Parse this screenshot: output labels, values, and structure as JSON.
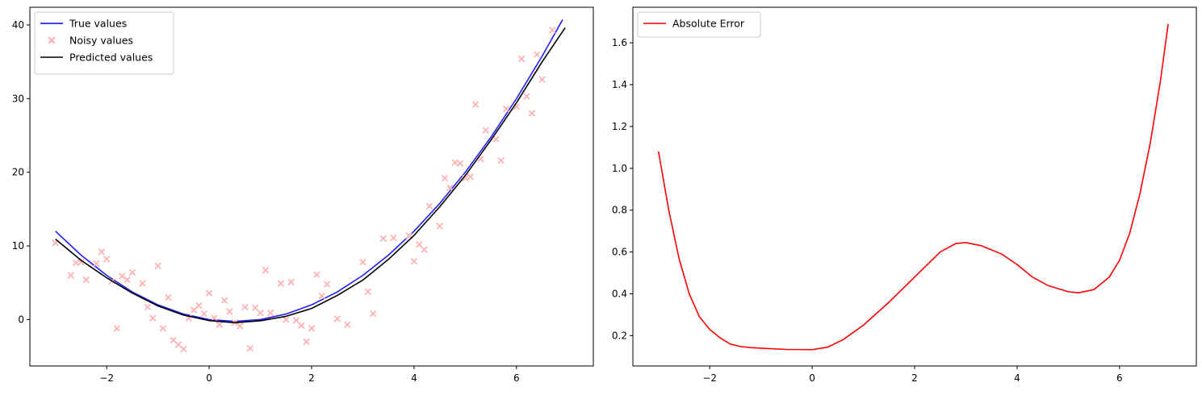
{
  "chart_data": [
    {
      "type": "line",
      "xlim": [
        -3.5,
        7.5
      ],
      "ylim": [
        -6.3,
        42.4
      ],
      "xticks": [
        -2,
        0,
        2,
        4,
        6
      ],
      "yticks": [
        0,
        10,
        20,
        30,
        40
      ],
      "grid": false,
      "legend": {
        "placement": "top-left",
        "entries": [
          {
            "label": "True values",
            "color": "#0000ff",
            "marker": "line"
          },
          {
            "label": "Noisy values",
            "color": "#ff9f9f",
            "marker": "x"
          },
          {
            "label": "Predicted values",
            "color": "#000000",
            "marker": "line"
          }
        ]
      },
      "series": [
        {
          "name": "True values",
          "kind": "line",
          "color": "#1f1fff",
          "x": [
            -3.0,
            -2.5,
            -2.0,
            -1.5,
            -1.0,
            -0.5,
            0.0,
            0.5,
            1.0,
            1.5,
            2.0,
            2.5,
            3.0,
            3.5,
            4.0,
            4.5,
            5.0,
            5.5,
            6.0,
            6.5,
            6.9
          ],
          "y": [
            12.0,
            8.75,
            6.0,
            3.75,
            2.0,
            0.75,
            0.0,
            -0.25,
            0.0,
            0.75,
            2.0,
            3.75,
            6.0,
            8.75,
            12.0,
            15.75,
            20.0,
            24.75,
            30.0,
            35.75,
            40.71
          ]
        },
        {
          "name": "Noisy values",
          "kind": "scatter",
          "color": "#ffb3b3",
          "x": [
            -3.0,
            -2.7,
            -2.6,
            -2.5,
            -2.4,
            -2.2,
            -2.1,
            -2.0,
            -1.9,
            -1.8,
            -1.7,
            -1.6,
            -1.5,
            -1.3,
            -1.2,
            -1.1,
            -1.0,
            -0.9,
            -0.8,
            -0.7,
            -0.6,
            -0.5,
            -0.4,
            -0.3,
            -0.2,
            -0.1,
            0.0,
            0.1,
            0.2,
            0.3,
            0.4,
            0.5,
            0.6,
            0.7,
            0.8,
            0.9,
            1.0,
            1.1,
            1.2,
            1.4,
            1.5,
            1.6,
            1.7,
            1.8,
            1.9,
            2.0,
            2.1,
            2.2,
            2.3,
            2.5,
            2.7,
            3.0,
            3.1,
            3.2,
            3.4,
            3.6,
            3.9,
            4.0,
            4.1,
            4.2,
            4.3,
            4.5,
            4.6,
            4.7,
            4.8,
            4.9,
            5.0,
            5.1,
            5.2,
            5.3,
            5.4,
            5.6,
            5.7,
            5.8,
            6.0,
            6.1,
            6.2,
            6.3,
            6.4,
            6.5,
            6.7
          ],
          "y": [
            10.4,
            6.0,
            7.7,
            7.8,
            5.4,
            7.6,
            9.2,
            8.2,
            5.2,
            -1.2,
            5.9,
            5.4,
            6.4,
            4.9,
            1.7,
            0.2,
            7.3,
            -1.2,
            3.0,
            -2.8,
            -3.4,
            -4.0,
            0.2,
            1.3,
            1.9,
            0.8,
            3.6,
            0.2,
            -0.7,
            2.6,
            1.1,
            -0.4,
            -0.9,
            1.7,
            -3.9,
            1.6,
            0.9,
            6.7,
            0.9,
            4.9,
            0.0,
            5.1,
            -0.1,
            -0.8,
            -3.0,
            -1.2,
            6.1,
            3.2,
            4.8,
            0.1,
            -0.7,
            7.8,
            3.8,
            0.8,
            11.0,
            11.1,
            11.4,
            7.9,
            10.2,
            9.5,
            15.4,
            12.7,
            19.2,
            17.9,
            21.3,
            21.2,
            19.2,
            19.4,
            29.2,
            21.8,
            25.7,
            24.5,
            21.6,
            28.6,
            28.9,
            35.4,
            30.3,
            28.0,
            36.0,
            32.6,
            39.3
          ]
        },
        {
          "name": "Predicted values",
          "kind": "line",
          "color": "#000000",
          "x": [
            -3.0,
            -2.5,
            -2.0,
            -1.5,
            -1.0,
            -0.5,
            0.0,
            0.5,
            1.0,
            1.5,
            2.0,
            2.5,
            3.0,
            3.5,
            4.0,
            4.5,
            5.0,
            5.5,
            6.0,
            6.5,
            6.95
          ],
          "y": [
            10.92,
            8.05,
            5.67,
            3.6,
            1.85,
            0.61,
            -0.14,
            -0.42,
            -0.16,
            0.44,
            1.51,
            3.27,
            5.36,
            8.17,
            11.43,
            15.3,
            19.55,
            24.35,
            29.44,
            34.99,
            39.62
          ]
        }
      ]
    },
    {
      "type": "line",
      "xlim": [
        -3.5,
        7.5
      ],
      "ylim": [
        0.055,
        1.77
      ],
      "xticks": [
        -2,
        0,
        2,
        4,
        6
      ],
      "yticks": [
        0.2,
        0.4,
        0.6,
        0.8,
        1.0,
        1.2,
        1.4,
        1.6
      ],
      "grid": false,
      "legend": {
        "placement": "top-left",
        "entries": [
          {
            "label": "Absolute Error",
            "color": "#ff0000",
            "marker": "line"
          }
        ]
      },
      "series": [
        {
          "name": "Absolute Error",
          "kind": "line",
          "color": "#ff0000",
          "x": [
            -3.0,
            -2.8,
            -2.6,
            -2.4,
            -2.2,
            -2.0,
            -1.8,
            -1.6,
            -1.4,
            -1.2,
            -1.0,
            -0.5,
            0.0,
            0.3,
            0.6,
            1.0,
            1.5,
            2.0,
            2.5,
            2.8,
            3.0,
            3.3,
            3.7,
            4.0,
            4.3,
            4.6,
            5.0,
            5.2,
            5.5,
            5.8,
            6.0,
            6.2,
            6.4,
            6.6,
            6.8,
            6.95
          ],
          "y": [
            1.08,
            0.8,
            0.57,
            0.4,
            0.29,
            0.23,
            0.19,
            0.16,
            0.148,
            0.143,
            0.14,
            0.134,
            0.133,
            0.145,
            0.18,
            0.25,
            0.36,
            0.48,
            0.6,
            0.64,
            0.645,
            0.63,
            0.59,
            0.54,
            0.48,
            0.44,
            0.41,
            0.405,
            0.42,
            0.48,
            0.56,
            0.69,
            0.88,
            1.12,
            1.42,
            1.69
          ]
        }
      ]
    }
  ]
}
